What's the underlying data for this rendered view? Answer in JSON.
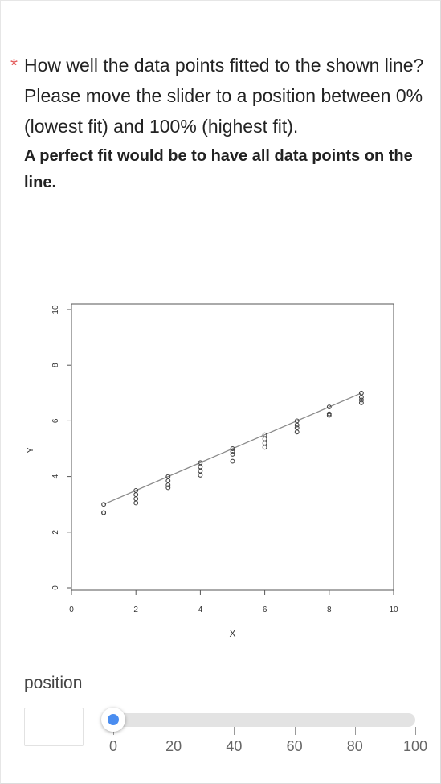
{
  "question": {
    "required_mark": "*",
    "line1": "How well the data points fitted to the shown line?",
    "line2": "Please move the slider to a position between 0% (lowest fit) and 100% (highest fit).",
    "line3": "A perfect fit would be to have all data points on the line."
  },
  "chart_data": {
    "type": "scatter",
    "title": "",
    "xlabel": "X",
    "ylabel": "Y",
    "xlim": [
      0,
      10
    ],
    "ylim": [
      0,
      10
    ],
    "xticks": [
      "0",
      "2",
      "4",
      "6",
      "8",
      "10"
    ],
    "yticks": [
      "0",
      "2",
      "4",
      "6",
      "8",
      "10"
    ],
    "grid": false,
    "points": [
      {
        "x": 1,
        "y": 3.0
      },
      {
        "x": 1,
        "y": 2.7
      },
      {
        "x": 1,
        "y": 2.7
      },
      {
        "x": 2,
        "y": 3.5
      },
      {
        "x": 2,
        "y": 3.35
      },
      {
        "x": 2,
        "y": 3.2
      },
      {
        "x": 2,
        "y": 3.05
      },
      {
        "x": 3,
        "y": 4.0
      },
      {
        "x": 3,
        "y": 3.85
      },
      {
        "x": 3,
        "y": 3.7
      },
      {
        "x": 3,
        "y": 3.6
      },
      {
        "x": 4,
        "y": 4.5
      },
      {
        "x": 4,
        "y": 4.35
      },
      {
        "x": 4,
        "y": 4.2
      },
      {
        "x": 4,
        "y": 4.05
      },
      {
        "x": 5,
        "y": 5.0
      },
      {
        "x": 5,
        "y": 4.9
      },
      {
        "x": 5,
        "y": 4.8
      },
      {
        "x": 5,
        "y": 4.55
      },
      {
        "x": 6,
        "y": 5.5
      },
      {
        "x": 6,
        "y": 5.35
      },
      {
        "x": 6,
        "y": 5.2
      },
      {
        "x": 6,
        "y": 5.05
      },
      {
        "x": 7,
        "y": 6.0
      },
      {
        "x": 7,
        "y": 5.85
      },
      {
        "x": 7,
        "y": 5.75
      },
      {
        "x": 7,
        "y": 5.6
      },
      {
        "x": 8,
        "y": 6.5
      },
      {
        "x": 8,
        "y": 6.25
      },
      {
        "x": 8,
        "y": 6.2
      },
      {
        "x": 9,
        "y": 7.0
      },
      {
        "x": 9,
        "y": 6.85
      },
      {
        "x": 9,
        "y": 6.75
      },
      {
        "x": 9,
        "y": 6.65
      }
    ],
    "line": {
      "x": [
        1,
        9
      ],
      "y": [
        3,
        7
      ]
    },
    "line_color": "#8a8a8a"
  },
  "position": {
    "label": "position",
    "value": "",
    "slider_value": 0,
    "min": 0,
    "max": 100,
    "tick_labels": [
      "0",
      "20",
      "40",
      "60",
      "80",
      "100"
    ],
    "accent_color": "#4a8df0"
  }
}
